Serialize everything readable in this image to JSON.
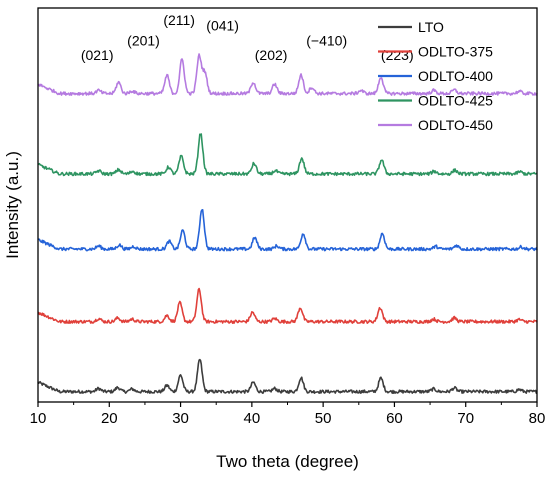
{
  "chart_data": {
    "type": "line",
    "title": "",
    "xlabel": "Two theta (degree)",
    "ylabel": "Intensity (a.u.)",
    "xlim": [
      10,
      80
    ],
    "xticks": [
      10,
      20,
      30,
      40,
      50,
      60,
      70,
      80
    ],
    "y_ticks_shown": false,
    "grid": false,
    "legend_position": "top-right",
    "series": [
      {
        "name": "LTO",
        "color": "#3d3d3d",
        "baseline": 0.2,
        "peaks": [
          [
            18.5,
            0.06
          ],
          [
            21.2,
            0.08
          ],
          [
            23.2,
            0.05
          ],
          [
            28.1,
            0.12
          ],
          [
            30.0,
            0.32
          ],
          [
            32.7,
            0.62
          ],
          [
            40.2,
            0.18
          ],
          [
            43.2,
            0.06
          ],
          [
            46.9,
            0.27
          ],
          [
            58.1,
            0.26
          ],
          [
            65.5,
            0.05
          ],
          [
            68.4,
            0.07
          ],
          [
            77.5,
            0.04
          ]
        ]
      },
      {
        "name": "ODLTO-375",
        "color": "#e0403a",
        "baseline": 1.55,
        "peaks": [
          [
            18.5,
            0.06
          ],
          [
            21.2,
            0.07
          ],
          [
            23.2,
            0.05
          ],
          [
            28.1,
            0.12
          ],
          [
            29.9,
            0.36
          ],
          [
            32.6,
            0.62
          ],
          [
            40.1,
            0.18
          ],
          [
            43.2,
            0.06
          ],
          [
            46.8,
            0.27
          ],
          [
            58.0,
            0.27
          ],
          [
            65.5,
            0.05
          ],
          [
            68.4,
            0.07
          ],
          [
            77.5,
            0.04
          ]
        ]
      },
      {
        "name": "ODLTO-400",
        "color": "#2563d8",
        "baseline": 2.95,
        "peaks": [
          [
            18.5,
            0.06
          ],
          [
            21.4,
            0.08
          ],
          [
            23.4,
            0.05
          ],
          [
            28.4,
            0.15
          ],
          [
            30.3,
            0.36
          ],
          [
            33.0,
            0.78
          ],
          [
            40.4,
            0.22
          ],
          [
            43.5,
            0.06
          ],
          [
            47.2,
            0.3
          ],
          [
            58.3,
            0.3
          ],
          [
            65.8,
            0.05
          ],
          [
            68.7,
            0.07
          ],
          [
            77.8,
            0.04
          ]
        ]
      },
      {
        "name": "ODLTO-425",
        "color": "#2e9461",
        "baseline": 4.4,
        "peaks": [
          [
            18.5,
            0.06
          ],
          [
            21.3,
            0.08
          ],
          [
            23.3,
            0.05
          ],
          [
            28.3,
            0.13
          ],
          [
            30.1,
            0.34
          ],
          [
            32.8,
            0.78
          ],
          [
            40.3,
            0.2
          ],
          [
            43.3,
            0.06
          ],
          [
            47.0,
            0.3
          ],
          [
            58.2,
            0.27
          ],
          [
            65.6,
            0.05
          ],
          [
            68.5,
            0.07
          ],
          [
            77.6,
            0.04
          ]
        ]
      },
      {
        "name": "ODLTO-450",
        "color": "#b57be0",
        "baseline": 5.95,
        "peaks": [
          [
            18.5,
            0.06
          ],
          [
            21.3,
            0.22
          ],
          [
            23.2,
            0.05
          ],
          [
            28.1,
            0.35
          ],
          [
            30.2,
            0.66
          ],
          [
            32.6,
            0.72
          ],
          [
            33.4,
            0.4
          ],
          [
            40.2,
            0.22
          ],
          [
            43.2,
            0.18
          ],
          [
            46.9,
            0.36
          ],
          [
            48.4,
            0.12
          ],
          [
            55.3,
            0.06
          ],
          [
            58.1,
            0.32
          ],
          [
            65.5,
            0.06
          ],
          [
            68.4,
            0.07
          ],
          [
            77.5,
            0.04
          ]
        ]
      }
    ],
    "annotations": [
      {
        "text": "(021)",
        "x": 18.3,
        "y": 6.6
      },
      {
        "text": "(201)",
        "x": 24.8,
        "y": 6.88
      },
      {
        "text": "(211)",
        "x": 29.8,
        "y": 7.27
      },
      {
        "text": "(041)",
        "x": 35.9,
        "y": 7.17
      },
      {
        "text": "(202)",
        "x": 42.7,
        "y": 6.6
      },
      {
        "text": "(−410)",
        "x": 50.5,
        "y": 6.88
      },
      {
        "text": "(223)",
        "x": 60.4,
        "y": 6.6
      }
    ]
  }
}
